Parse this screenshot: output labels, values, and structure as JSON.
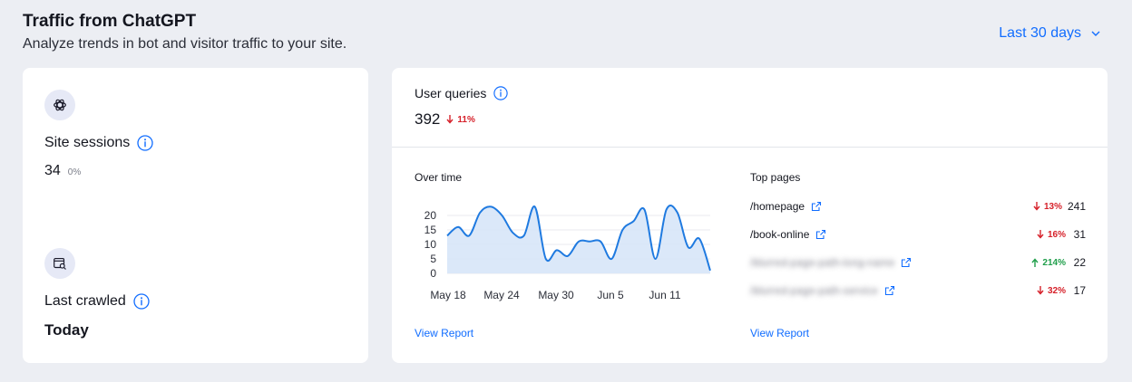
{
  "header": {
    "title": "Traffic from ChatGPT",
    "subtitle": "Analyze trends in bot and visitor traffic to your site.",
    "range_label": "Last 30 days"
  },
  "left_card": {
    "site_sessions": {
      "label": "Site sessions",
      "value": "34",
      "change": "0%"
    },
    "last_crawled": {
      "label": "Last crawled",
      "value": "Today"
    }
  },
  "user_queries": {
    "label": "User queries",
    "value": "392",
    "change": "11%",
    "change_direction": "down"
  },
  "over_time": {
    "title": "Over time",
    "link": "View Report"
  },
  "chart_data": {
    "type": "area",
    "x_tick_labels": [
      "May 18",
      "May 24",
      "May 30",
      "Jun 5",
      "Jun 11"
    ],
    "y_tick_labels": [
      "20",
      "15",
      "10",
      "5",
      "0"
    ],
    "ylim": [
      0,
      25
    ],
    "values": [
      13,
      16,
      13,
      21,
      23,
      20,
      14,
      13,
      23,
      5,
      8,
      6,
      11,
      11,
      11,
      5,
      15,
      18,
      22,
      5,
      22,
      21,
      9,
      12,
      1
    ],
    "line_color": "#1f7ae0",
    "fill_color": "#d7e6f8"
  },
  "top_pages": {
    "title": "Top pages",
    "link": "View Report",
    "rows": [
      {
        "name": "/homepage",
        "blurred": false,
        "change": "13%",
        "direction": "down",
        "count": "241"
      },
      {
        "name": "/book-online",
        "blurred": false,
        "change": "16%",
        "direction": "down",
        "count": "31"
      },
      {
        "name": "/blurred-page-path-long-name",
        "blurred": true,
        "change": "214%",
        "direction": "up",
        "count": "22"
      },
      {
        "name": "/blurred-page-path-service",
        "blurred": true,
        "change": "32%",
        "direction": "down",
        "count": "17"
      }
    ]
  },
  "colors": {
    "accent": "#116dff",
    "down": "#d6212a",
    "up": "#1f9e4a"
  }
}
